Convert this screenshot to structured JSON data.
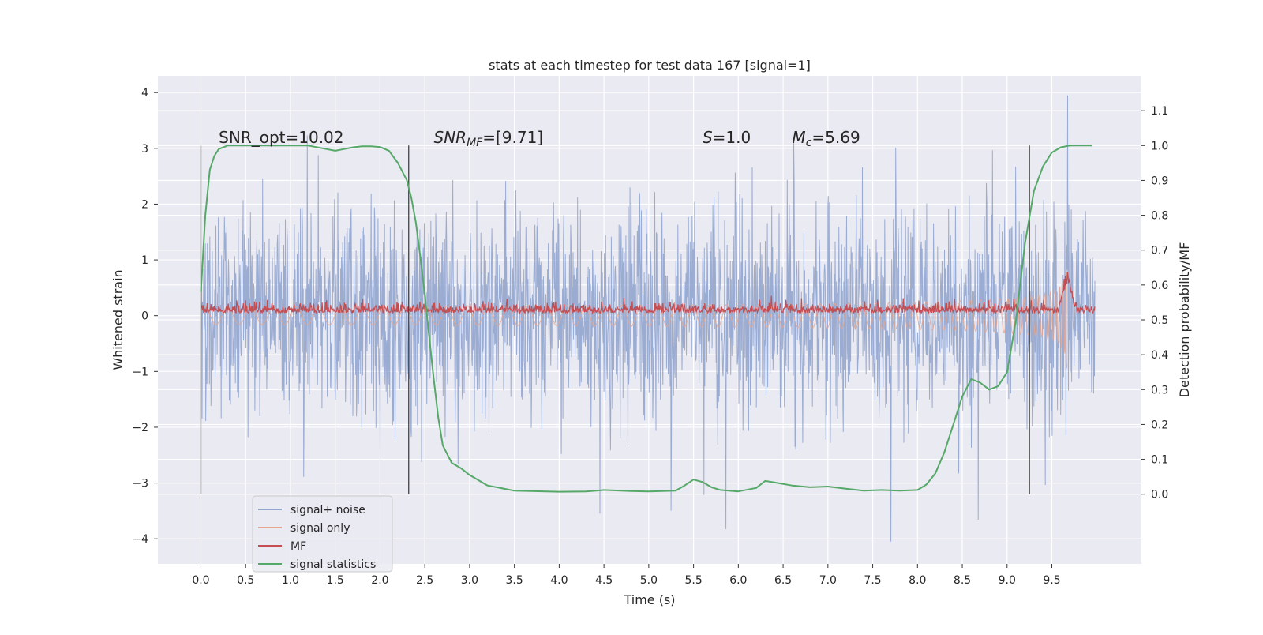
{
  "chart_data": {
    "type": "line",
    "title": "stats at each timestep for test data 167 [signal=1]",
    "xlabel": "Time (s)",
    "ylabel_left": "Whitened strain",
    "ylabel_right": "Detection probability/MF",
    "xlim": [
      -0.48,
      10.5
    ],
    "ylim_left": [
      -4.45,
      4.3
    ],
    "ylim_right": [
      -0.2,
      1.2
    ],
    "x_ticks": [
      "0.0",
      "0.5",
      "1.0",
      "1.5",
      "2.0",
      "2.5",
      "3.0",
      "3.5",
      "4.0",
      "4.5",
      "5.0",
      "5.5",
      "6.0",
      "6.5",
      "7.0",
      "7.5",
      "8.0",
      "8.5",
      "9.0",
      "9.5"
    ],
    "y_ticks_left": [
      "4",
      "3",
      "2",
      "1",
      "0",
      "−1",
      "−2",
      "−3",
      "−4"
    ],
    "y_ticks_right": [
      "1.1",
      "1.0",
      "0.9",
      "0.8",
      "0.7",
      "0.6",
      "0.5",
      "0.4",
      "0.3",
      "0.2",
      "0.1",
      "0.0"
    ],
    "grid": true,
    "legend_position": "lower-left",
    "annotations": [
      {
        "label": "SNR_opt=10.02",
        "x": 0.2
      },
      {
        "label": "SNR",
        "sub": "MF",
        "suffix": "=[9.71]",
        "x": 2.6
      },
      {
        "label": "S",
        "suffix": "=1.0",
        "x": 5.6
      },
      {
        "label": "M",
        "sub": "c",
        "suffix": "=5.69",
        "x": 6.6
      }
    ],
    "vertical_markers": [
      0.0,
      2.32,
      9.25
    ],
    "series": [
      {
        "name": "signal+ noise",
        "color": "#92a5cf",
        "axis": "left",
        "kind": "noise",
        "envelope": 1.8,
        "range": [
          0.0,
          9.98
        ]
      },
      {
        "name": "signal only",
        "color": "#e8a48c",
        "axis": "left",
        "kind": "chirp",
        "peak_x": 9.67,
        "peak_amp": 1.2
      },
      {
        "name": "MF",
        "color": "#c44e52",
        "axis": "right",
        "kind": "noise",
        "baseline": 0.52,
        "peak_x": 9.67,
        "peak_y": 0.66
      },
      {
        "name": "signal statistics",
        "color": "#55a868",
        "axis": "right",
        "kind": "line",
        "x": [
          0.0,
          0.05,
          0.1,
          0.15,
          0.2,
          0.3,
          0.5,
          0.8,
          1.0,
          1.2,
          1.4,
          1.5,
          1.6,
          1.7,
          1.8,
          1.9,
          2.0,
          2.1,
          2.2,
          2.3,
          2.35,
          2.4,
          2.45,
          2.5,
          2.55,
          2.6,
          2.65,
          2.7,
          2.8,
          2.9,
          3.0,
          3.2,
          3.5,
          4.0,
          4.3,
          4.5,
          4.8,
          5.0,
          5.3,
          5.4,
          5.5,
          5.6,
          5.7,
          5.8,
          6.0,
          6.2,
          6.3,
          6.4,
          6.6,
          6.8,
          7.0,
          7.2,
          7.4,
          7.6,
          7.8,
          8.0,
          8.1,
          8.2,
          8.3,
          8.4,
          8.5,
          8.6,
          8.7,
          8.8,
          8.9,
          9.0,
          9.1,
          9.2,
          9.3,
          9.4,
          9.5,
          9.6,
          9.7,
          9.8,
          9.95
        ],
        "y": [
          0.58,
          0.8,
          0.93,
          0.97,
          0.99,
          1.0,
          1.0,
          1.0,
          1.0,
          1.0,
          0.99,
          0.985,
          0.99,
          0.995,
          0.998,
          0.998,
          0.996,
          0.985,
          0.95,
          0.9,
          0.85,
          0.78,
          0.68,
          0.57,
          0.45,
          0.33,
          0.22,
          0.14,
          0.09,
          0.075,
          0.055,
          0.025,
          0.01,
          0.007,
          0.008,
          0.012,
          0.009,
          0.008,
          0.01,
          0.025,
          0.042,
          0.035,
          0.02,
          0.012,
          0.008,
          0.018,
          0.038,
          0.034,
          0.025,
          0.02,
          0.022,
          0.016,
          0.01,
          0.012,
          0.01,
          0.012,
          0.028,
          0.06,
          0.12,
          0.2,
          0.28,
          0.33,
          0.32,
          0.3,
          0.31,
          0.35,
          0.5,
          0.72,
          0.87,
          0.94,
          0.98,
          0.995,
          1.0,
          1.0,
          1.0
        ]
      }
    ]
  }
}
